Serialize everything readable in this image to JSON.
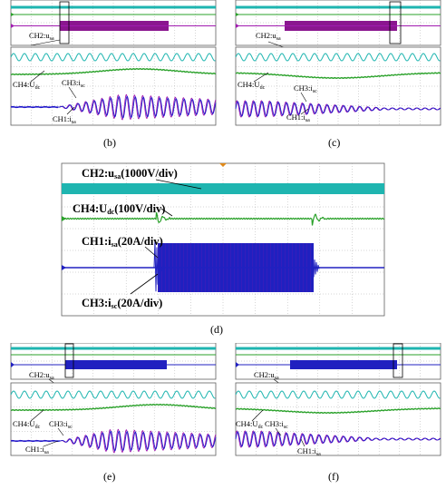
{
  "panels": {
    "b": {
      "label": "(b)",
      "ann": {
        "ch2": "CH2:u",
        "ch2_sub": "sa",
        "ch4": "CH4:U",
        "ch4_sub": "dc",
        "ch3": "CH3:i",
        "ch3_sub": "sc",
        "ch1": "CH1:i",
        "ch1_sub": "sa"
      }
    },
    "c": {
      "label": "(c)",
      "ann": {
        "ch2": "CH2:u",
        "ch2_sub": "sa",
        "ch4": "CH4:U",
        "ch4_sub": "dc",
        "ch3": "CH3:i",
        "ch3_sub": "sc",
        "ch1": "CH1:i",
        "ch1_sub": "sa"
      }
    },
    "d": {
      "label": "(d)",
      "ann": {
        "ch2": "CH2:u",
        "ch2_sub": "sa",
        "ch2_scale": "(1000V/div)",
        "ch4": "CH4:U",
        "ch4_sub": "dc",
        "ch4_scale": "(100V/div)",
        "ch1": "CH1:i",
        "ch1_sub": "sa",
        "ch1_scale": "(20A/div)",
        "ch3": "CH3:i",
        "ch3_sub": "sc",
        "ch3_scale": "(20A/div)"
      }
    },
    "e": {
      "label": "(e)",
      "ann": {
        "ch2": "CH2:u",
        "ch2_sub": "sa",
        "ch4": "CH4:U",
        "ch4_sub": "dc",
        "ch3": "CH3:i",
        "ch3_sub": "sc",
        "ch1": "CH1:i",
        "ch1_sub": "sa"
      }
    },
    "f": {
      "label": "(f)",
      "ann": {
        "ch2": "CH2:u",
        "ch2_sub": "sa",
        "ch4": "CH4:U",
        "ch4_sub": "dc",
        "ch3": "CH3:i",
        "ch3_sub": "sc",
        "ch1": "CH1:i",
        "ch1_sub": "sa"
      }
    }
  },
  "colors": {
    "ch2": "#1fb5b0",
    "ch4": "#2aa12a",
    "ch1": "#1a1acc",
    "ch3": "#a01ab0",
    "ch1_dark": "#2020c0",
    "magenta_burst": "#8a168f",
    "grid": "#9a9a9a",
    "frame": "#606060"
  },
  "chart_data": [
    {
      "type": "line",
      "panel": "b",
      "series": [
        {
          "name": "CH2:usa"
        },
        {
          "name": "CH4:Udc"
        },
        {
          "name": "CH3:isc"
        },
        {
          "name": "CH1:isa"
        }
      ]
    },
    {
      "type": "line",
      "panel": "c",
      "series": [
        {
          "name": "CH2:usa"
        },
        {
          "name": "CH4:Udc"
        },
        {
          "name": "CH3:isc"
        },
        {
          "name": "CH1:isa"
        }
      ]
    },
    {
      "type": "line",
      "panel": "d",
      "series": [
        {
          "name": "CH2:usa",
          "scale": "1000V/div"
        },
        {
          "name": "CH4:Udc",
          "scale": "100V/div"
        },
        {
          "name": "CH1:isa",
          "scale": "20A/div"
        },
        {
          "name": "CH3:isc",
          "scale": "20A/div"
        }
      ]
    },
    {
      "type": "line",
      "panel": "e",
      "series": [
        {
          "name": "CH2:usa"
        },
        {
          "name": "CH4:Udc"
        },
        {
          "name": "CH3:isc"
        },
        {
          "name": "CH1:isa"
        }
      ]
    },
    {
      "type": "line",
      "panel": "f",
      "series": [
        {
          "name": "CH2:usa"
        },
        {
          "name": "CH4:Udc"
        },
        {
          "name": "CH3:isc"
        },
        {
          "name": "CH1:isa"
        }
      ]
    }
  ]
}
